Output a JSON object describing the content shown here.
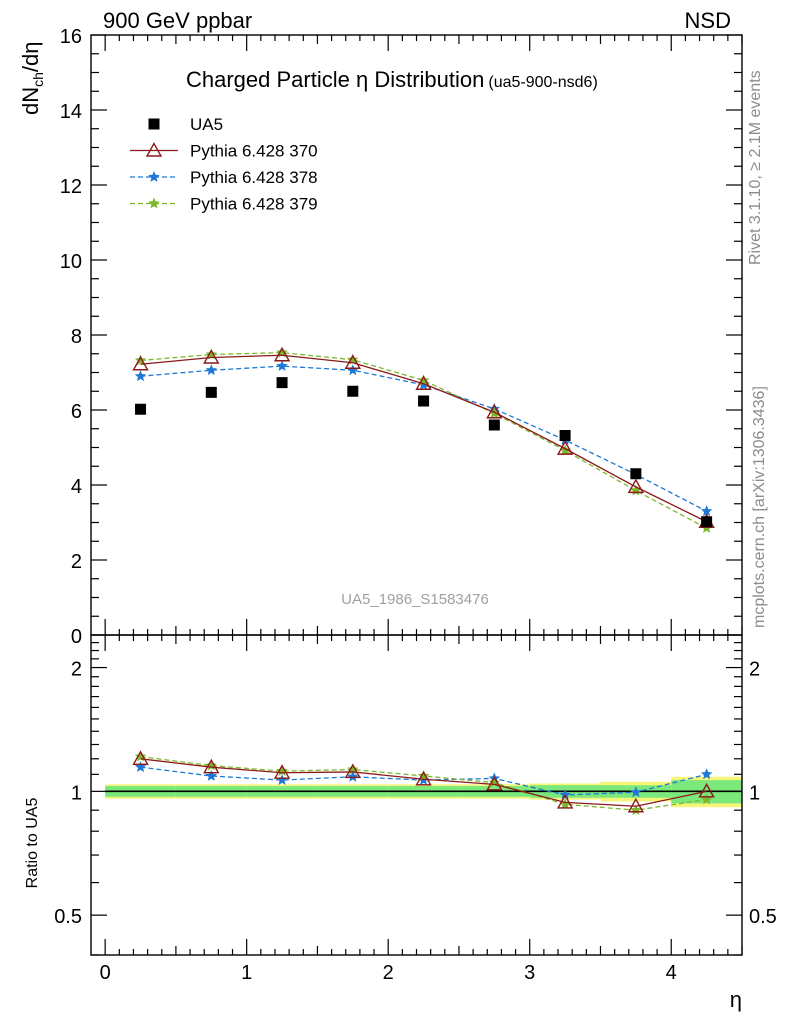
{
  "header": {
    "left": "900 GeV ppbar",
    "right": "NSD"
  },
  "title": {
    "main": "Charged Particle η Distribution",
    "sub": "(ua5-900-nsd6)"
  },
  "side_labels": {
    "rivet": "Rivet 3.1.10, ≥ 2.1M events",
    "mcplots": "mcplots.cern.ch [arXiv:1306.3436]"
  },
  "watermark": "UA5_1986_S1583476",
  "main_yaxis": {
    "label_main": "dN",
    "label_sub": "ch",
    "label_tail": "/dη"
  },
  "ratio_yaxis": {
    "label": "Ratio to UA5"
  },
  "xaxis": {
    "label": "η"
  },
  "chart_data": {
    "type": "scatter",
    "x": [
      0.25,
      0.75,
      1.25,
      1.75,
      2.25,
      2.75,
      3.25,
      3.75,
      4.25
    ],
    "xlim": [
      -0.1,
      4.5
    ],
    "xticks": [
      0,
      1,
      2,
      3,
      4
    ],
    "xtick_labels": [
      "0",
      "1",
      "2",
      "3",
      "4"
    ],
    "main_panel": {
      "ylim": [
        0,
        16
      ],
      "yticks": [
        0,
        2,
        4,
        6,
        8,
        10,
        12,
        14,
        16
      ],
      "ytick_labels": [
        "0",
        "2",
        "4",
        "6",
        "8",
        "10",
        "12",
        "14",
        "16"
      ],
      "series": [
        {
          "name": "UA5",
          "color": "#000000",
          "marker": "square",
          "line": "none",
          "values": [
            6.02,
            6.47,
            6.73,
            6.5,
            6.24,
            5.6,
            5.32,
            4.3,
            3.02
          ]
        },
        {
          "name": "Pythia 6.428 370",
          "color": "#8b1a1a",
          "marker": "open-triangle",
          "line": "solid",
          "values": [
            7.22,
            7.4,
            7.46,
            7.26,
            6.7,
            5.94,
            4.97,
            3.95,
            3.02
          ]
        },
        {
          "name": "Pythia 6.428 378",
          "color": "#1f78d6",
          "marker": "star",
          "line": "dashed",
          "values": [
            6.9,
            7.06,
            7.17,
            7.06,
            6.67,
            6.03,
            5.2,
            4.28,
            3.3
          ]
        },
        {
          "name": "Pythia 6.428 379",
          "color": "#7db82c",
          "marker": "star",
          "line": "dashed",
          "values": [
            7.32,
            7.48,
            7.53,
            7.34,
            6.79,
            5.91,
            4.92,
            3.85,
            2.85
          ]
        }
      ]
    },
    "ratio_panel": {
      "ylim": [
        0.4,
        2.4
      ],
      "log_scale": true,
      "yticks": [
        0.5,
        1,
        2
      ],
      "ytick_labels": [
        "0.5",
        "1",
        "2"
      ],
      "band_green_halfwidth": [
        0.03,
        0.03,
        0.03,
        0.03,
        0.03,
        0.03,
        0.035,
        0.035,
        0.065
      ],
      "band_yellow_halfwidth": [
        0.04,
        0.04,
        0.04,
        0.04,
        0.04,
        0.04,
        0.045,
        0.055,
        0.085
      ],
      "series": [
        {
          "name": "Pythia 6.428 370",
          "values": [
            1.2,
            1.145,
            1.11,
            1.115,
            1.07,
            1.04,
            0.94,
            0.92,
            1.0
          ]
        },
        {
          "name": "Pythia 6.428 378",
          "values": [
            1.145,
            1.09,
            1.065,
            1.085,
            1.065,
            1.075,
            0.98,
            0.995,
            1.1
          ]
        },
        {
          "name": "Pythia 6.428 379",
          "values": [
            1.215,
            1.155,
            1.12,
            1.13,
            1.09,
            1.05,
            0.93,
            0.9,
            0.955
          ]
        }
      ]
    }
  }
}
